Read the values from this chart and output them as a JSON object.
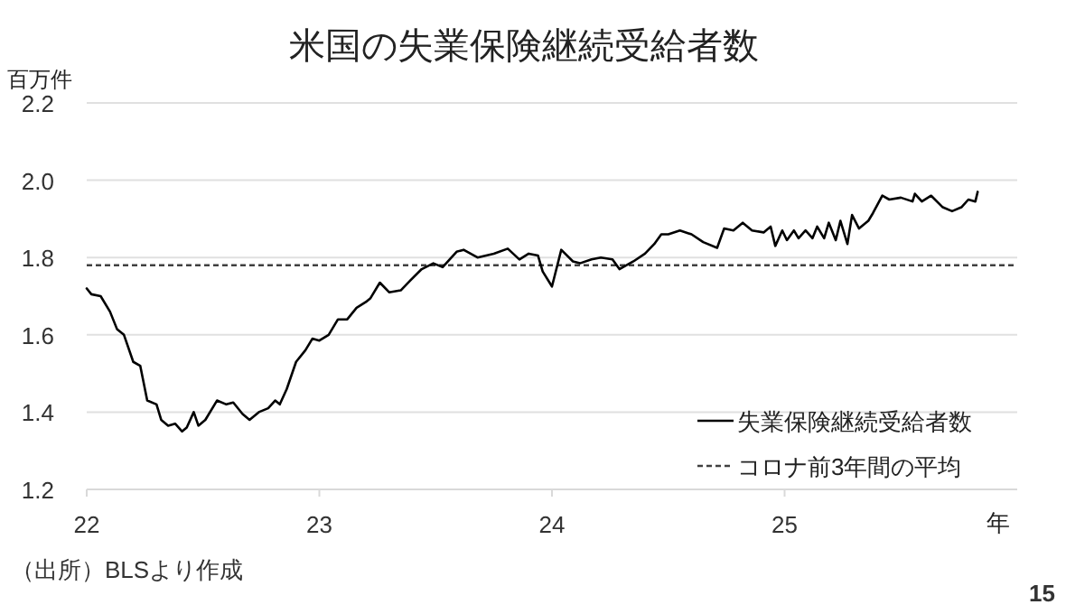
{
  "chart_data": {
    "type": "line",
    "title": "米国の失業保険継続受給者数",
    "ylabel": "百万件",
    "xlabel": "年",
    "annotations": [
      "（出所）BLSより作成",
      "15"
    ],
    "xlim": [
      22,
      26
    ],
    "xticks": [
      22,
      23,
      24,
      25
    ],
    "ylim": [
      1.2,
      2.2
    ],
    "yticks": [
      {
        "value": 1.2,
        "label": "1.2"
      },
      {
        "value": 1.4,
        "label": "1.4"
      },
      {
        "value": 1.6,
        "label": "1.6"
      },
      {
        "value": 1.8,
        "label": "1.8"
      },
      {
        "value": 2.0,
        "label": "2.0"
      },
      {
        "value": 2.2,
        "label": "2.2"
      }
    ],
    "grid": "y",
    "legend": "bottom right",
    "line_style": "solid",
    "marker": "none",
    "series": [
      {
        "name": "失業保険継続受給者数",
        "color": "#000000",
        "x": [
          22.0,
          22.02,
          22.06,
          22.1,
          22.13,
          22.16,
          22.2,
          22.23,
          22.26,
          22.3,
          22.32,
          22.35,
          22.38,
          22.41,
          22.43,
          22.46,
          22.48,
          22.51,
          22.56,
          22.6,
          22.63,
          22.67,
          22.7,
          22.74,
          22.78,
          22.81,
          22.83,
          22.86,
          22.9,
          22.94,
          22.97,
          23.0,
          23.04,
          23.08,
          23.12,
          23.16,
          23.2,
          23.22,
          23.26,
          23.3,
          23.35,
          23.39,
          23.44,
          23.49,
          23.53,
          23.59,
          23.62,
          23.68,
          23.75,
          23.81,
          23.86,
          23.9,
          23.94,
          23.96,
          24.0,
          24.04,
          24.09,
          24.12,
          24.17,
          24.21,
          24.26,
          24.29,
          24.35,
          24.4,
          24.44,
          24.47,
          24.5,
          24.55,
          24.6,
          24.65,
          24.71,
          24.74,
          24.78,
          24.82,
          24.86,
          24.91,
          24.94,
          24.96,
          24.99,
          25.01,
          25.04,
          25.06,
          25.09,
          25.12,
          25.14,
          25.17,
          25.19,
          25.22,
          25.24,
          25.27,
          25.29,
          25.32,
          25.36,
          25.38,
          25.42,
          25.45,
          25.5,
          25.55,
          25.56,
          25.59,
          25.63,
          25.68,
          25.72,
          25.76,
          25.79,
          25.82,
          25.83
        ],
        "values": [
          1.72,
          1.705,
          1.7,
          1.66,
          1.615,
          1.6,
          1.53,
          1.52,
          1.43,
          1.42,
          1.38,
          1.365,
          1.37,
          1.35,
          1.36,
          1.4,
          1.365,
          1.38,
          1.43,
          1.42,
          1.425,
          1.395,
          1.38,
          1.4,
          1.41,
          1.43,
          1.42,
          1.46,
          1.53,
          1.56,
          1.59,
          1.585,
          1.6,
          1.64,
          1.64,
          1.67,
          1.685,
          1.695,
          1.735,
          1.71,
          1.715,
          1.74,
          1.77,
          1.785,
          1.775,
          1.815,
          1.82,
          1.8,
          1.81,
          1.823,
          1.795,
          1.81,
          1.805,
          1.764,
          1.725,
          1.82,
          1.79,
          1.785,
          1.795,
          1.8,
          1.795,
          1.77,
          1.79,
          1.81,
          1.835,
          1.86,
          1.86,
          1.87,
          1.86,
          1.84,
          1.825,
          1.875,
          1.87,
          1.89,
          1.87,
          1.865,
          1.88,
          1.83,
          1.87,
          1.845,
          1.87,
          1.85,
          1.87,
          1.85,
          1.88,
          1.85,
          1.89,
          1.845,
          1.895,
          1.835,
          1.91,
          1.875,
          1.895,
          1.915,
          1.96,
          1.95,
          1.955,
          1.945,
          1.965,
          1.945,
          1.96,
          1.93,
          1.92,
          1.93,
          1.95,
          1.945,
          1.97
        ]
      }
    ],
    "ref_lines": [
      {
        "axis": "y",
        "value": 1.78,
        "label": "コロナ前3年間の平均",
        "color": "#404040",
        "line_style": "dashed"
      }
    ]
  }
}
